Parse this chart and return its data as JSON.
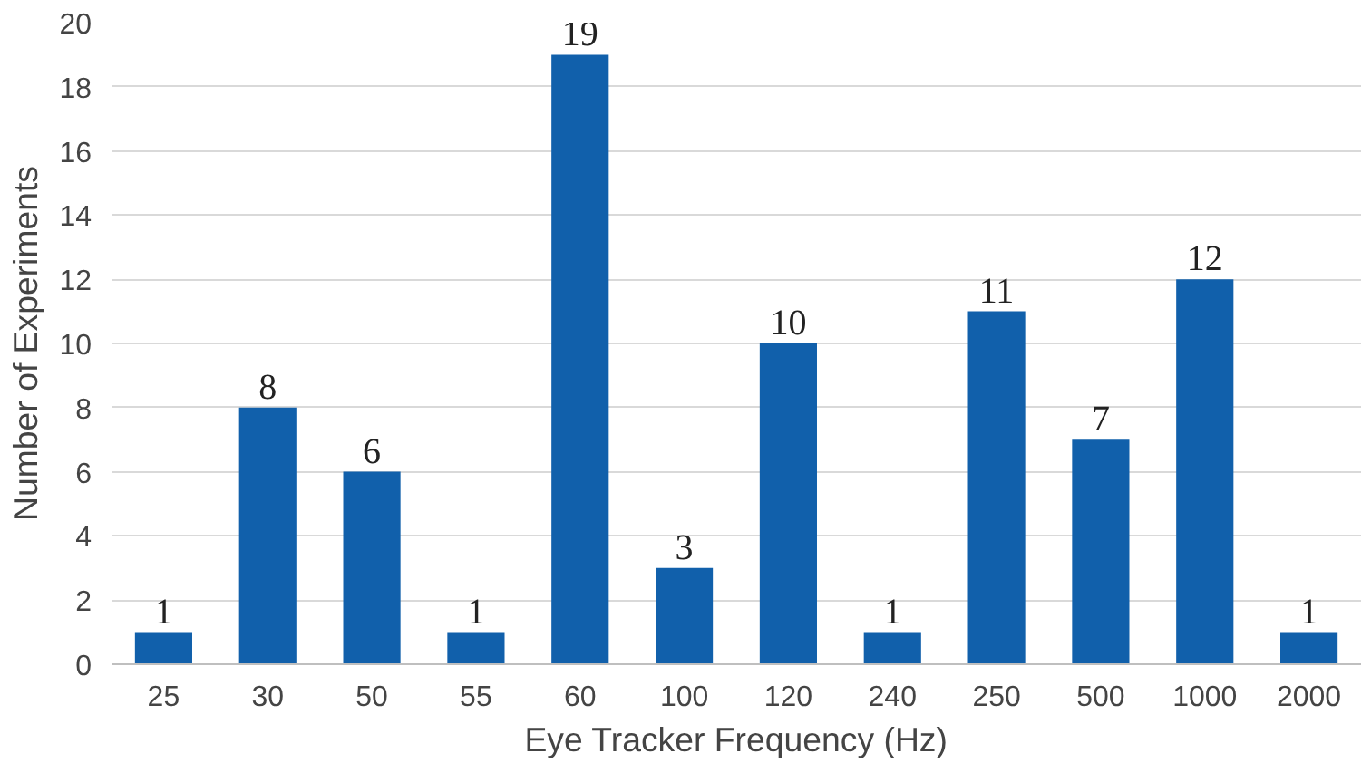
{
  "chart_data": {
    "type": "bar",
    "xlabel": "Eye Tracker Frequency (Hz)",
    "ylabel": "Number of Experiments",
    "categories": [
      "25",
      "30",
      "50",
      "55",
      "60",
      "100",
      "120",
      "240",
      "250",
      "500",
      "1000",
      "2000"
    ],
    "values": [
      1,
      8,
      6,
      1,
      19,
      3,
      10,
      1,
      11,
      7,
      12,
      1
    ],
    "color": "#1160ab",
    "ylim": [
      0,
      20
    ],
    "yticks": [
      0,
      2,
      4,
      6,
      8,
      10,
      12,
      14,
      16,
      18,
      20
    ],
    "grid": "y",
    "data_labels": true
  }
}
